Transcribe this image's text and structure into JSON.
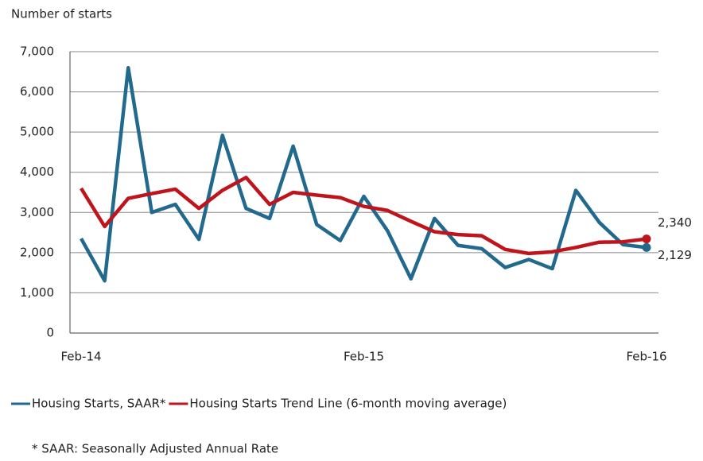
{
  "chart_data": {
    "type": "line",
    "y_axis_label": "Number of starts",
    "categories": [
      "Feb-14",
      null,
      null,
      null,
      null,
      null,
      null,
      null,
      null,
      null,
      null,
      null,
      "Feb-15",
      null,
      null,
      null,
      null,
      null,
      null,
      null,
      null,
      null,
      null,
      null,
      "Feb-16"
    ],
    "series": [
      {
        "name": "Housing Starts, SAAR*",
        "color": "#22698e",
        "values": [
          2350,
          1300,
          6600,
          3000,
          3200,
          2330,
          4920,
          3100,
          2850,
          4650,
          2700,
          2300,
          3400,
          2550,
          1350,
          2850,
          2180,
          2100,
          1630,
          1830,
          1600,
          3550,
          2750,
          2200,
          2129
        ],
        "value_labels": [
          null,
          null,
          null,
          null,
          null,
          null,
          null,
          null,
          null,
          null,
          null,
          null,
          null,
          null,
          null,
          null,
          null,
          null,
          null,
          null,
          null,
          null,
          null,
          null,
          "2,129"
        ]
      },
      {
        "name": "Housing Starts Trend Line (6-month moving average)",
        "color": "#c0141c",
        "values": [
          3600,
          2650,
          3350,
          3470,
          3580,
          3100,
          3550,
          3870,
          3200,
          3500,
          3430,
          3370,
          3150,
          3050,
          2780,
          2520,
          2450,
          2420,
          2080,
          1980,
          2020,
          2130,
          2260,
          2270,
          2340
        ],
        "value_labels": [
          null,
          null,
          null,
          null,
          null,
          null,
          null,
          null,
          null,
          null,
          null,
          null,
          null,
          null,
          null,
          null,
          null,
          null,
          null,
          null,
          null,
          null,
          null,
          null,
          "2,340"
        ]
      }
    ],
    "ylim": [
      0,
      7000
    ],
    "yticks": [
      0,
      {
        "value": 1000,
        "label": "1,000"
      },
      {
        "value": 2000,
        "label": "2,000"
      },
      {
        "value": 3000,
        "label": "3,000"
      },
      {
        "value": 4000,
        "label": "4,000"
      },
      {
        "value": 5000,
        "label": "5,000"
      },
      {
        "value": 6000,
        "label": "6,000"
      },
      {
        "value": 7000,
        "label": "7,000"
      }
    ],
    "grid": true,
    "footnote": "* SAAR: Seasonally Adjusted Annual Rate"
  }
}
